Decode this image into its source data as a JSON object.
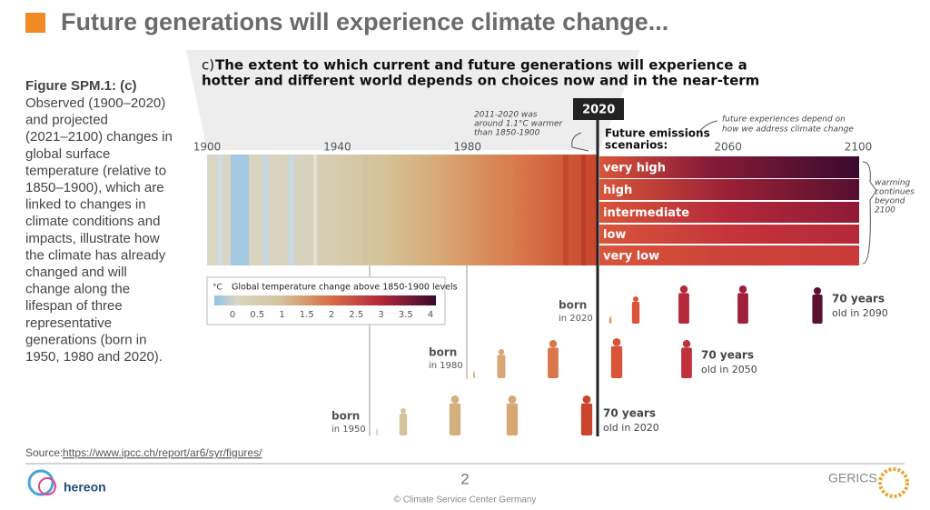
{
  "slide": {
    "title": "Future generations will experience climate change...",
    "caption_heading": "Figure SPM.1: (c)",
    "caption_lines": [
      "Observed (1900–2020)",
      "and projected",
      "(2021–2100) changes in",
      "global surface",
      "temperature (relative to",
      "1850–1900), which are",
      "linked to changes in",
      "climate conditions and",
      "impacts, illustrate how",
      "the climate has already",
      "changed and will",
      "change along the",
      "lifespan of three",
      "representative",
      "generations (born in",
      "1950, 1980 and 2020)."
    ],
    "source_label": "Source:",
    "source_url": "https://www.ipcc.ch/report/ar6/syr/figures/",
    "page_number": "2",
    "footer": "© Climate Service Center Germany",
    "logo_left": "hereon",
    "logo_right": "GERICS"
  },
  "figure": {
    "panel": "c)",
    "title_lines": [
      "The extent to which current and future generations will experience a",
      "hotter and different world depends on choices now and in the near-term"
    ],
    "year_ticks": [
      1900,
      1940,
      1980,
      2060,
      2100
    ],
    "now_year": 2020,
    "now_note_lines": [
      "2011-2020 was",
      "around 1.1°C warmer",
      "than 1850-1900"
    ],
    "scenarios_title_lines": [
      "Future emissions",
      "scenarios:"
    ],
    "scenarios": [
      "very high",
      "high",
      "intermediate",
      "low",
      "very low"
    ],
    "future_note_lines": [
      "future experiences depend on",
      "how we address climate change"
    ],
    "beyond_note_lines": [
      "warming",
      "continues",
      "beyond",
      "2100"
    ],
    "legend": {
      "unit": "°C",
      "title": "Global temperature change above 1850-1900 levels",
      "ticks": [
        0,
        0.5,
        1,
        1.5,
        2,
        2.5,
        3,
        3.5,
        4
      ]
    },
    "generations": [
      {
        "born": "born",
        "born_year": "in 2020",
        "age": "70 years",
        "old_year": "old in 2090"
      },
      {
        "born": "born",
        "born_year": "in 1980",
        "age": "70 years",
        "old_year": "old in 2050"
      },
      {
        "born": "born",
        "born_year": "in 1950",
        "age": "70 years",
        "old_year": "old in 2020"
      }
    ]
  }
}
